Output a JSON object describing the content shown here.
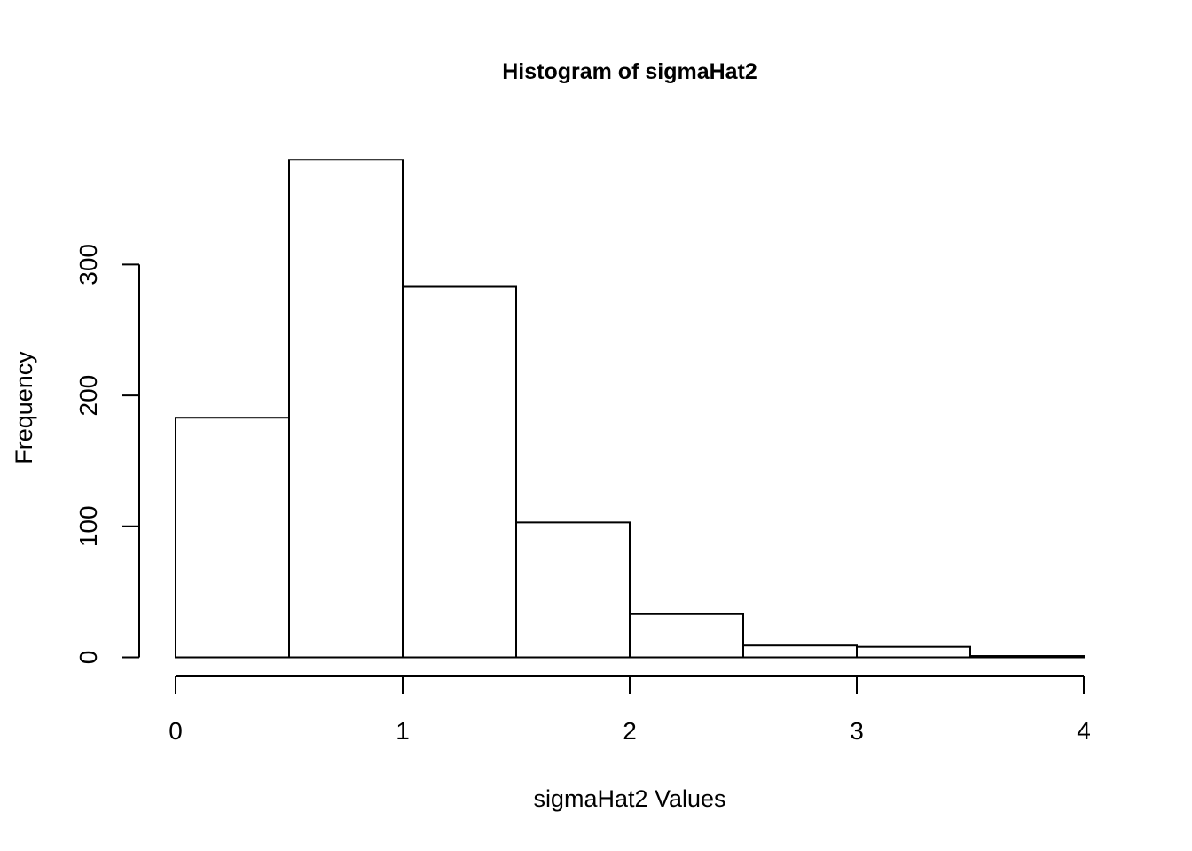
{
  "chart_data": {
    "type": "bar",
    "title": "Histogram of sigmaHat2",
    "xlabel": "sigmaHat2 Values",
    "ylabel": "Frequency",
    "bins": [
      {
        "x0": 0.0,
        "x1": 0.5,
        "count": 183
      },
      {
        "x0": 0.5,
        "x1": 1.0,
        "count": 380
      },
      {
        "x0": 1.0,
        "x1": 1.5,
        "count": 283
      },
      {
        "x0": 1.5,
        "x1": 2.0,
        "count": 103
      },
      {
        "x0": 2.0,
        "x1": 2.5,
        "count": 33
      },
      {
        "x0": 2.5,
        "x1": 3.0,
        "count": 9
      },
      {
        "x0": 3.0,
        "x1": 3.5,
        "count": 8
      },
      {
        "x0": 3.5,
        "x1": 4.0,
        "count": 1
      }
    ],
    "x_ticks": [
      0,
      1,
      2,
      3,
      4
    ],
    "x_tick_labels": [
      "0",
      "1",
      "2",
      "3",
      "4"
    ],
    "y_ticks": [
      0,
      100,
      200,
      300
    ],
    "y_tick_labels": [
      "0",
      "100",
      "200",
      "300"
    ],
    "xlim": [
      0,
      4
    ],
    "ylim": [
      0,
      380
    ],
    "grid": false,
    "legend": "none",
    "bar_fill": "#ffffff",
    "bar_stroke": "#000000"
  }
}
